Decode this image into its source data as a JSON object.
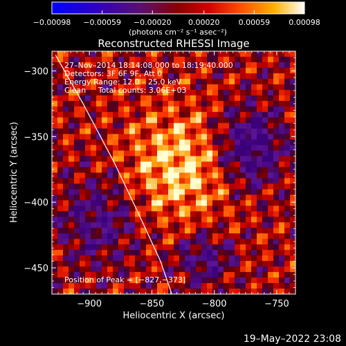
{
  "chart_data": {
    "type": "heatmap",
    "title": "Reconstructed RHESSI Image",
    "xlabel": "Heliocentric X (arcsec)",
    "ylabel": "Heliocentric Y (arcsec)",
    "xlim": [
      -930,
      -735
    ],
    "ylim": [
      -470,
      -285
    ],
    "x_ticks": [
      -900,
      -850,
      -800,
      -750
    ],
    "x_tick_labels": [
      "−900",
      "−850",
      "−800",
      "−750"
    ],
    "y_ticks": [
      -300,
      -350,
      -400,
      -450
    ],
    "y_tick_labels": [
      "−300",
      "−350",
      "−400",
      "−450"
    ],
    "colorbar": {
      "range": [
        -0.00098,
        0.00098
      ],
      "ticks": [
        -0.00098,
        -0.00059,
        -0.0002,
        0.0002,
        0.00059,
        0.00098
      ],
      "tick_labels": [
        "−0.00098",
        "−0.00059",
        "−0.00020",
        "0.00020",
        "0.00059",
        "0.00098"
      ],
      "unit_label": "(photons cm⁻² s⁻¹ asec⁻²)"
    },
    "annotations": [
      "27–Nov–2014 18:14:08.000 to 18:19:40.000",
      "Detectors: 3F 6F 9F, Att 0",
      "Energy Range: 12.0 – 25.0 keV",
      "Clean     Total counts: 3.06E+03"
    ],
    "peak_label": "Position of Peak = [−827,−373]",
    "peak": [
      -827,
      -373
    ],
    "limb_curve": [
      [
        -927,
        -288
      ],
      [
        -905,
        -325
      ],
      [
        -880,
        -370
      ],
      [
        -860,
        -410
      ],
      [
        -843,
        -445
      ],
      [
        -834,
        -470
      ]
    ]
  },
  "footer": {
    "timestamp": "19–May–2022 23:08"
  }
}
